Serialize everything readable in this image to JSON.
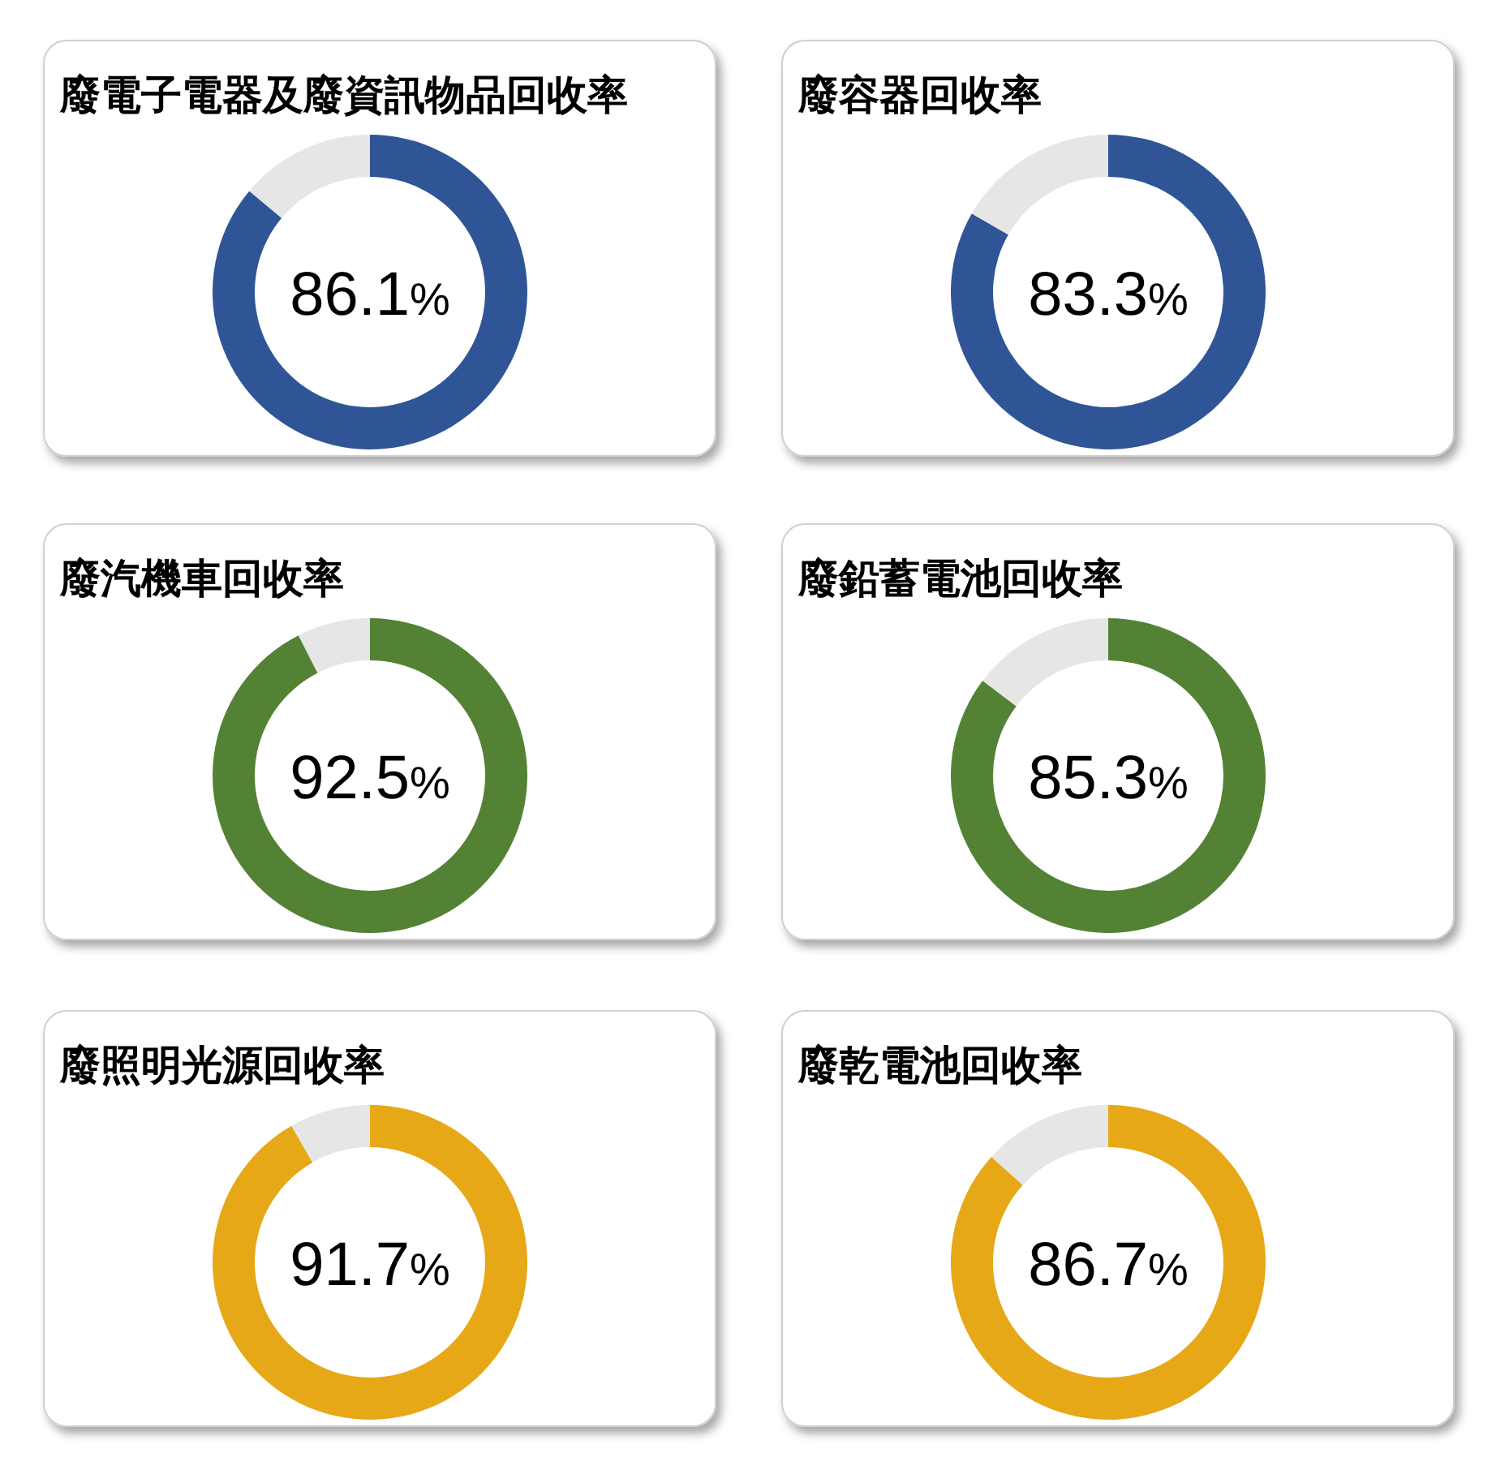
{
  "chart_data": [
    {
      "type": "donut",
      "title": "廢電子電器及廢資訊物品回收率",
      "categories": [
        null,
        null
      ],
      "values": [
        86.1,
        13.9
      ],
      "colors": [
        "#2f5597",
        "#e6e6e6"
      ],
      "value_labels": [
        "86.1%",
        null
      ]
    },
    {
      "type": "donut",
      "title": "廢容器回收率",
      "categories": [
        null,
        null
      ],
      "values": [
        83.3,
        16.7
      ],
      "colors": [
        "#2f5597",
        "#e6e6e6"
      ],
      "value_labels": [
        "83.3%",
        null
      ]
    },
    {
      "type": "donut",
      "title": "廢汽機車回收率",
      "categories": [
        null,
        null
      ],
      "values": [
        92.5,
        7.5
      ],
      "colors": [
        "#548235",
        "#e6e6e6"
      ],
      "value_labels": [
        "92.5%",
        null
      ]
    },
    {
      "type": "donut",
      "title": "廢鉛蓄電池回收率",
      "categories": [
        null,
        null
      ],
      "values": [
        85.3,
        14.7
      ],
      "colors": [
        "#548235",
        "#e6e6e6"
      ],
      "value_labels": [
        "85.3%",
        null
      ]
    },
    {
      "type": "donut",
      "title": "廢照明光源回收率",
      "categories": [
        null,
        null
      ],
      "values": [
        91.7,
        8.3
      ],
      "colors": [
        "#e6a817",
        "#e6e6e6"
      ],
      "value_labels": [
        "91.7%",
        null
      ]
    },
    {
      "type": "donut",
      "title": "廢乾電池回收率",
      "categories": [
        null,
        null
      ],
      "values": [
        86.7,
        13.3
      ],
      "colors": [
        "#e6a817",
        "#e6e6e6"
      ],
      "value_labels": [
        "86.7%",
        null
      ]
    }
  ]
}
